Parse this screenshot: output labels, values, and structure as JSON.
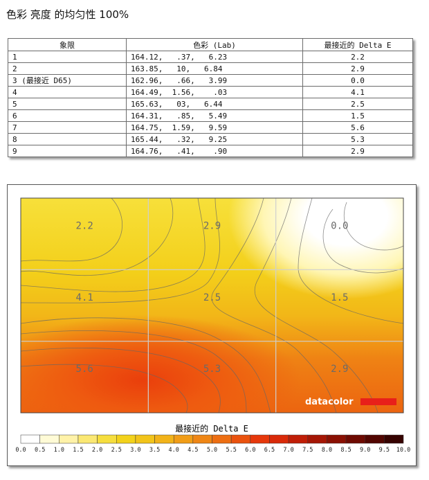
{
  "title": "色彩 亮度 的均匀性 100%",
  "table": {
    "headers": [
      "象限",
      "色彩 (Lab)",
      "最接近的 Delta E"
    ],
    "rows": [
      {
        "q": "1",
        "lab": "164.12,   .37,   6.23",
        "de": "2.2"
      },
      {
        "q": "2",
        "lab": "163.85,   10,   6.84",
        "de": "2.9"
      },
      {
        "q": "3 (最接近 D65)",
        "lab": "162.96,   .66,   3.99",
        "de": "0.0"
      },
      {
        "q": "4",
        "lab": "164.49,  1.56,    .03",
        "de": "4.1"
      },
      {
        "q": "5",
        "lab": "165.63,   03,   6.44",
        "de": "2.5"
      },
      {
        "q": "6",
        "lab": "164.31,   .85,   5.49",
        "de": "1.5"
      },
      {
        "q": "7",
        "lab": "164.75,  1.59,   9.59",
        "de": "5.6"
      },
      {
        "q": "8",
        "lab": "165.44,   .32,   9.25",
        "de": "5.3"
      },
      {
        "q": "9",
        "lab": "164.76,   .41,    .90",
        "de": "2.9"
      }
    ]
  },
  "chart_data": {
    "type": "heatmap",
    "grid": [
      [
        2.2,
        2.9,
        0.0
      ],
      [
        4.1,
        2.5,
        1.5
      ],
      [
        5.6,
        5.3,
        2.9
      ]
    ],
    "legend_title": "最接近的 Delta E",
    "scale_ticks": [
      "0.0",
      "0.5",
      "1.0",
      "1.5",
      "2.0",
      "2.5",
      "3.0",
      "3.5",
      "4.0",
      "4.5",
      "5.0",
      "5.5",
      "6.0",
      "6.5",
      "7.0",
      "7.5",
      "8.0",
      "8.5",
      "9.0",
      "9.5",
      "10.0"
    ],
    "range": [
      0,
      10
    ],
    "brand": "datacolor",
    "colors": [
      "#ffffff",
      "#fffbd6",
      "#fff2a8",
      "#fbe873",
      "#f6de3e",
      "#f3d21b",
      "#f2c41a",
      "#f2b319",
      "#f19d17",
      "#ef8615",
      "#ed6e12",
      "#ea520e",
      "#e6380b",
      "#d92a09",
      "#c01e07",
      "#a51605",
      "#8a1003",
      "#6e0a02",
      "#520601",
      "#360300",
      "#1a0000"
    ]
  }
}
